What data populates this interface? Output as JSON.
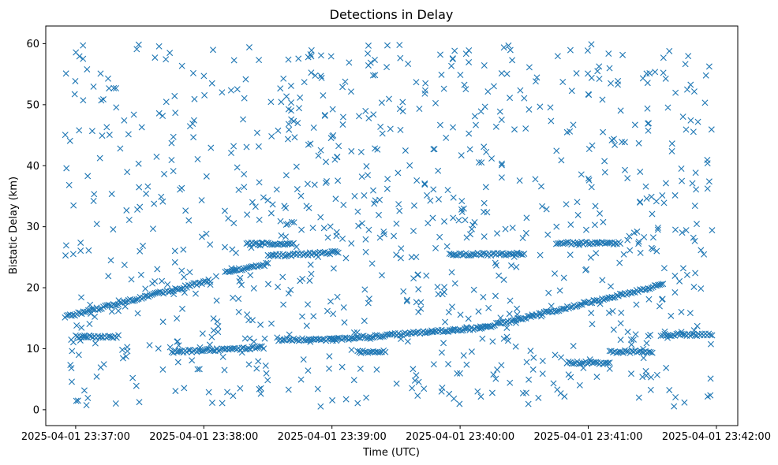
{
  "chart_data": {
    "type": "scatter",
    "title": "Detections in Delay",
    "xlabel": "Time (UTC)",
    "ylabel": "Bistatic Delay (km)",
    "x_unit": "UTC time",
    "xlim": [
      "2025-04-01 23:36:46",
      "2025-04-01 23:42:10"
    ],
    "ylim": [
      -2.6,
      62.9
    ],
    "x_ticks": [
      "2025-04-01 23:37:00",
      "2025-04-01 23:38:00",
      "2025-04-01 23:39:00",
      "2025-04-01 23:40:00",
      "2025-04-01 23:41:00",
      "2025-04-01 23:42:00"
    ],
    "y_ticks": [
      "0",
      "10",
      "20",
      "30",
      "40",
      "50",
      "60"
    ],
    "marker": "x",
    "marker_color": "#1f77b4",
    "grid": false,
    "legend": "none",
    "series": [
      {
        "marker": "x",
        "tracks": [
          {
            "x": [
              "2025-04-01 23:36:55",
              "2025-04-01 23:38:03"
            ],
            "y": [
              15.2,
              21.2
            ]
          },
          {
            "x": [
              "2025-04-01 23:38:10",
              "2025-04-01 23:38:30"
            ],
            "y": [
              22.6,
              23.9
            ]
          },
          {
            "x": [
              "2025-04-01 23:38:30",
              "2025-04-01 23:39:03"
            ],
            "y": [
              25.2,
              25.8
            ]
          },
          {
            "x": [
              "2025-04-01 23:38:20",
              "2025-04-01 23:38:42"
            ],
            "y": [
              27.2,
              27.2
            ]
          },
          {
            "x": [
              "2025-04-01 23:39:00",
              "2025-04-01 23:40:10"
            ],
            "y": [
              11.5,
              13.4
            ]
          },
          {
            "x": [
              "2025-04-01 23:40:10",
              "2025-04-01 23:41:35"
            ],
            "y": [
              13.4,
              20.5
            ]
          },
          {
            "x": [
              "2025-04-01 23:37:45",
              "2025-04-01 23:38:28"
            ],
            "y": [
              9.5,
              10.2
            ]
          },
          {
            "x": [
              "2025-04-01 23:38:35",
              "2025-04-01 23:39:02"
            ],
            "y": [
              11.5,
              11.5
            ]
          },
          {
            "x": [
              "2025-04-01 23:39:12",
              "2025-04-01 23:39:25"
            ],
            "y": [
              9.5,
              9.5
            ]
          },
          {
            "x": [
              "2025-04-01 23:40:50",
              "2025-04-01 23:41:10"
            ],
            "y": [
              7.7,
              7.7
            ]
          },
          {
            "x": [
              "2025-04-01 23:41:10",
              "2025-04-01 23:41:30"
            ],
            "y": [
              9.5,
              9.5
            ]
          },
          {
            "x": [
              "2025-04-01 23:41:35",
              "2025-04-01 23:41:58"
            ],
            "y": [
              12.3,
              12.3
            ]
          },
          {
            "x": [
              "2025-04-01 23:39:55",
              "2025-04-01 23:40:30"
            ],
            "y": [
              25.5,
              25.5
            ]
          },
          {
            "x": [
              "2025-04-01 23:40:45",
              "2025-04-01 23:41:15"
            ],
            "y": [
              27.3,
              27.3
            ]
          },
          {
            "x": [
              "2025-04-01 23:37:00",
              "2025-04-01 23:37:20"
            ],
            "y": [
              12.0,
              12.0
            ]
          }
        ],
        "clutter": {
          "x_range": [
            "2025-04-01 23:36:55",
            "2025-04-01 23:41:58"
          ],
          "y_range": [
            0.5,
            60
          ],
          "count": 900
        }
      }
    ]
  }
}
